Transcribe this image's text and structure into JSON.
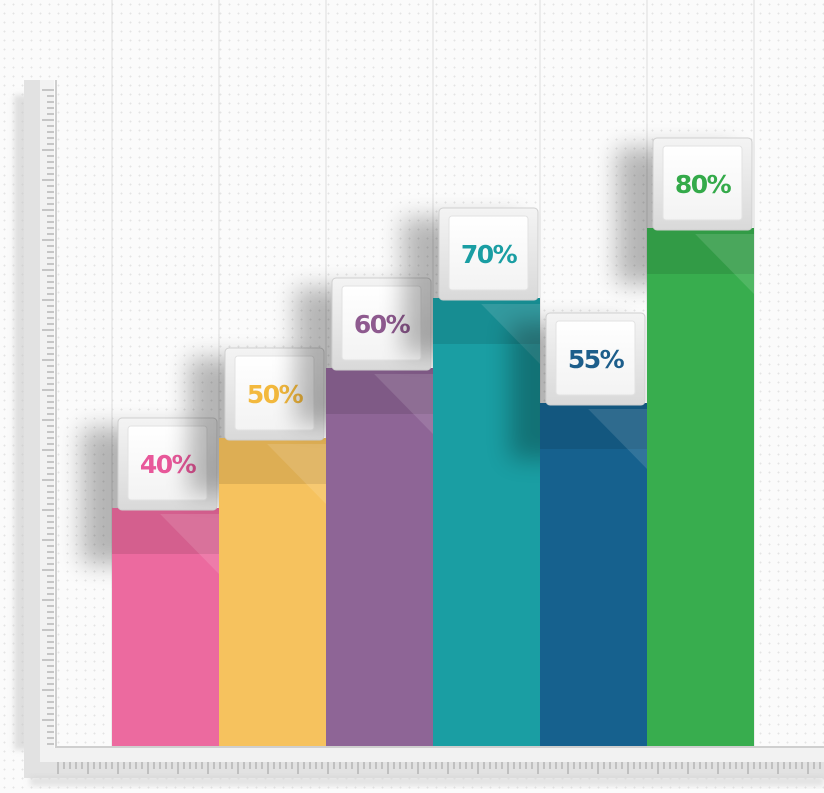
{
  "chart_data": {
    "type": "bar",
    "title": "",
    "xlabel": "",
    "ylabel": "",
    "ylim": [
      0,
      100
    ],
    "grid": true,
    "legend": "none",
    "bars": [
      {
        "value": 40,
        "label": "40%",
        "color": "#ec6a9f",
        "label_color": "#e8589a"
      },
      {
        "value": 50,
        "label": "50%",
        "color": "#f6c25e",
        "label_color": "#f3b93e"
      },
      {
        "value": 60,
        "label": "60%",
        "color": "#8e6596",
        "label_color": "#8e5a8f"
      },
      {
        "value": 70,
        "label": "70%",
        "color": "#1a9ea3",
        "label_color": "#1a9ea3"
      },
      {
        "value": 55,
        "label": "55%",
        "color": "#16618e",
        "label_color": "#1d5e8b"
      },
      {
        "value": 80,
        "label": "80%",
        "color": "#38ad4e",
        "label_color": "#34aa4a"
      }
    ]
  }
}
